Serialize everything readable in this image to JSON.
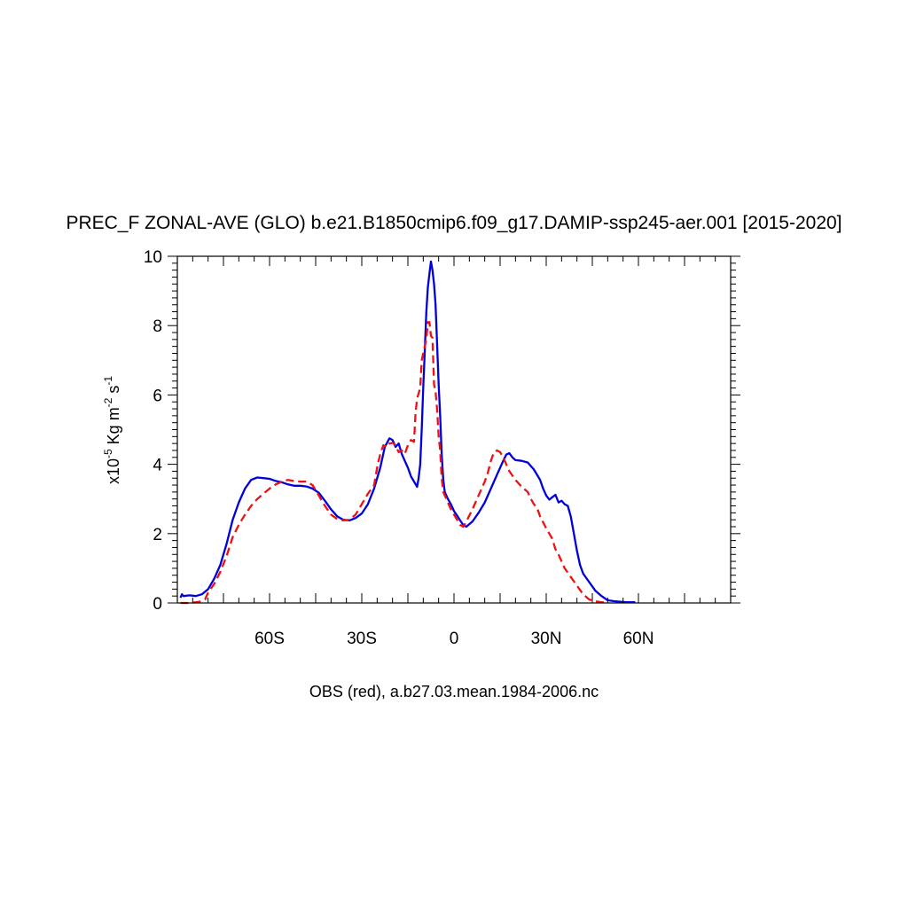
{
  "chart_data": {
    "type": "line",
    "title": "PREC_F ZONAL-AVE (GLO) b.e21.B1850cmip6.f09_g17.DAMIP-ssp245-aer.001 [2015-2020]",
    "xlabel": "OBS (red), a.b27.03.mean.1984-2006.nc",
    "ylabel": {
      "prefix": "x10",
      "exponent": "-5",
      "unit_kg": " Kg m",
      "exp_m": "-2",
      "unit_s": " s",
      "exp_s": "-1"
    },
    "xlim": [
      -90,
      90
    ],
    "ylim": [
      0,
      10
    ],
    "x_ticks": [
      {
        "value": -60,
        "label": "60S"
      },
      {
        "value": -30,
        "label": "30S"
      },
      {
        "value": 0,
        "label": "0"
      },
      {
        "value": 30,
        "label": "30N"
      },
      {
        "value": 60,
        "label": "60N"
      }
    ],
    "y_ticks": [
      {
        "value": 0,
        "label": "0"
      },
      {
        "value": 2,
        "label": "2"
      },
      {
        "value": 4,
        "label": "4"
      },
      {
        "value": 6,
        "label": "6"
      },
      {
        "value": 8,
        "label": "8"
      },
      {
        "value": 10,
        "label": "10"
      }
    ],
    "grid": false,
    "series": [
      {
        "color": "#0000dd",
        "style": "solid",
        "points": [
          [
            -89,
            0.15
          ],
          [
            -88.5,
            0.25
          ],
          [
            -88,
            0.2
          ],
          [
            -86,
            0.22
          ],
          [
            -84,
            0.2
          ],
          [
            -82,
            0.25
          ],
          [
            -80,
            0.4
          ],
          [
            -78,
            0.7
          ],
          [
            -76,
            1.1
          ],
          [
            -74,
            1.7
          ],
          [
            -72,
            2.4
          ],
          [
            -70,
            2.9
          ],
          [
            -68,
            3.3
          ],
          [
            -66,
            3.55
          ],
          [
            -64,
            3.62
          ],
          [
            -62,
            3.6
          ],
          [
            -60,
            3.58
          ],
          [
            -58,
            3.52
          ],
          [
            -56,
            3.48
          ],
          [
            -54,
            3.42
          ],
          [
            -52,
            3.38
          ],
          [
            -50,
            3.38
          ],
          [
            -48,
            3.36
          ],
          [
            -46,
            3.3
          ],
          [
            -44,
            3.18
          ],
          [
            -42,
            2.95
          ],
          [
            -40,
            2.7
          ],
          [
            -38,
            2.5
          ],
          [
            -36,
            2.4
          ],
          [
            -34,
            2.38
          ],
          [
            -32,
            2.45
          ],
          [
            -30,
            2.58
          ],
          [
            -28,
            2.85
          ],
          [
            -26,
            3.3
          ],
          [
            -24,
            3.9
          ],
          [
            -22.5,
            4.5
          ],
          [
            -21,
            4.75
          ],
          [
            -20,
            4.7
          ],
          [
            -19,
            4.5
          ],
          [
            -18,
            4.6
          ],
          [
            -17,
            4.3
          ],
          [
            -16,
            4.1
          ],
          [
            -15,
            3.9
          ],
          [
            -14,
            3.65
          ],
          [
            -13,
            3.5
          ],
          [
            -12,
            3.35
          ],
          [
            -11.5,
            3.6
          ],
          [
            -11,
            4.0
          ],
          [
            -10.5,
            5.0
          ],
          [
            -10,
            6.2
          ],
          [
            -9.5,
            7.3
          ],
          [
            -9,
            8.4
          ],
          [
            -8.5,
            9.1
          ],
          [
            -8,
            9.5
          ],
          [
            -7.5,
            9.85
          ],
          [
            -7,
            9.6
          ],
          [
            -6.5,
            9.2
          ],
          [
            -6,
            8.6
          ],
          [
            -5.5,
            7.5
          ],
          [
            -5,
            6.3
          ],
          [
            -4.5,
            5.4
          ],
          [
            -4,
            4.3
          ],
          [
            -3.5,
            3.55
          ],
          [
            -3,
            3.2
          ],
          [
            -2,
            3.0
          ],
          [
            -1,
            2.85
          ],
          [
            0,
            2.65
          ],
          [
            1,
            2.52
          ],
          [
            2,
            2.38
          ],
          [
            3,
            2.25
          ],
          [
            4,
            2.2
          ],
          [
            6,
            2.35
          ],
          [
            8,
            2.6
          ],
          [
            10,
            2.9
          ],
          [
            12,
            3.3
          ],
          [
            14,
            3.7
          ],
          [
            16,
            4.1
          ],
          [
            17,
            4.28
          ],
          [
            18,
            4.32
          ],
          [
            19,
            4.2
          ],
          [
            20,
            4.12
          ],
          [
            22,
            4.1
          ],
          [
            24,
            4.05
          ],
          [
            26,
            3.85
          ],
          [
            28,
            3.55
          ],
          [
            29,
            3.3
          ],
          [
            30,
            3.1
          ],
          [
            31,
            2.98
          ],
          [
            32,
            3.05
          ],
          [
            33,
            3.12
          ],
          [
            34,
            2.9
          ],
          [
            35,
            2.95
          ],
          [
            36,
            2.85
          ],
          [
            37,
            2.8
          ],
          [
            38,
            2.5
          ],
          [
            39,
            2.0
          ],
          [
            40,
            1.5
          ],
          [
            41,
            1.1
          ],
          [
            42,
            0.85
          ],
          [
            44,
            0.6
          ],
          [
            46,
            0.35
          ],
          [
            48,
            0.2
          ],
          [
            50,
            0.08
          ],
          [
            52,
            0.05
          ],
          [
            56,
            0.02
          ],
          [
            59,
            0.02
          ]
        ]
      },
      {
        "color": "#ee1111",
        "style": "dashed",
        "points": [
          [
            -89,
            0.0
          ],
          [
            -86,
            0.0
          ],
          [
            -83,
            0.03
          ],
          [
            -81,
            0.1
          ],
          [
            -80,
            0.3
          ],
          [
            -78,
            0.55
          ],
          [
            -76,
            0.9
          ],
          [
            -74,
            1.35
          ],
          [
            -72,
            1.9
          ],
          [
            -70,
            2.25
          ],
          [
            -68,
            2.55
          ],
          [
            -66,
            2.8
          ],
          [
            -64,
            3.0
          ],
          [
            -62,
            3.15
          ],
          [
            -60,
            3.3
          ],
          [
            -58,
            3.42
          ],
          [
            -56,
            3.5
          ],
          [
            -54,
            3.55
          ],
          [
            -52,
            3.52
          ],
          [
            -50,
            3.5
          ],
          [
            -48,
            3.5
          ],
          [
            -46,
            3.4
          ],
          [
            -44,
            3.1
          ],
          [
            -42,
            2.8
          ],
          [
            -40,
            2.55
          ],
          [
            -38,
            2.42
          ],
          [
            -36,
            2.38
          ],
          [
            -34,
            2.4
          ],
          [
            -32,
            2.55
          ],
          [
            -30,
            2.85
          ],
          [
            -28,
            3.15
          ],
          [
            -26,
            3.4
          ],
          [
            -25,
            3.9
          ],
          [
            -24,
            4.3
          ],
          [
            -23,
            4.55
          ],
          [
            -22,
            4.5
          ],
          [
            -21,
            4.6
          ],
          [
            -20,
            4.62
          ],
          [
            -19,
            4.55
          ],
          [
            -18,
            4.35
          ],
          [
            -17,
            4.4
          ],
          [
            -16,
            4.3
          ],
          [
            -15,
            4.55
          ],
          [
            -14,
            4.7
          ],
          [
            -13,
            4.65
          ],
          [
            -12.5,
            5.5
          ],
          [
            -12,
            5.9
          ],
          [
            -11,
            6.2
          ],
          [
            -10.5,
            7.0
          ],
          [
            -10,
            7.2
          ],
          [
            -9,
            7.6
          ],
          [
            -8.5,
            8.1
          ],
          [
            -8,
            8.1
          ],
          [
            -7.5,
            7.7
          ],
          [
            -7,
            7.65
          ],
          [
            -6.5,
            6.3
          ],
          [
            -6,
            6.1
          ],
          [
            -5.5,
            5.6
          ],
          [
            -5,
            4.8
          ],
          [
            -4.5,
            4.4
          ],
          [
            -4,
            3.6
          ],
          [
            -3.5,
            3.2
          ],
          [
            -2,
            2.9
          ],
          [
            -1,
            2.7
          ],
          [
            0,
            2.55
          ],
          [
            1,
            2.4
          ],
          [
            2,
            2.25
          ],
          [
            3,
            2.2
          ],
          [
            4,
            2.35
          ],
          [
            6,
            2.7
          ],
          [
            8,
            3.1
          ],
          [
            10,
            3.5
          ],
          [
            11,
            3.75
          ],
          [
            12,
            4.1
          ],
          [
            13,
            4.35
          ],
          [
            14,
            4.4
          ],
          [
            15,
            4.35
          ],
          [
            16,
            4.2
          ],
          [
            17,
            4.0
          ],
          [
            18,
            3.8
          ],
          [
            20,
            3.55
          ],
          [
            21,
            3.45
          ],
          [
            22,
            3.35
          ],
          [
            24,
            3.2
          ],
          [
            25,
            3.0
          ],
          [
            26,
            2.85
          ],
          [
            27,
            2.75
          ],
          [
            28,
            2.5
          ],
          [
            30,
            2.15
          ],
          [
            31,
            2.0
          ],
          [
            32,
            1.85
          ],
          [
            33,
            1.55
          ],
          [
            34,
            1.4
          ],
          [
            35,
            1.2
          ],
          [
            36,
            1.0
          ],
          [
            38,
            0.75
          ],
          [
            40,
            0.5
          ],
          [
            42,
            0.25
          ],
          [
            44,
            0.1
          ],
          [
            46,
            0.05
          ],
          [
            48,
            0.02
          ],
          [
            50,
            0.01
          ]
        ]
      }
    ]
  }
}
